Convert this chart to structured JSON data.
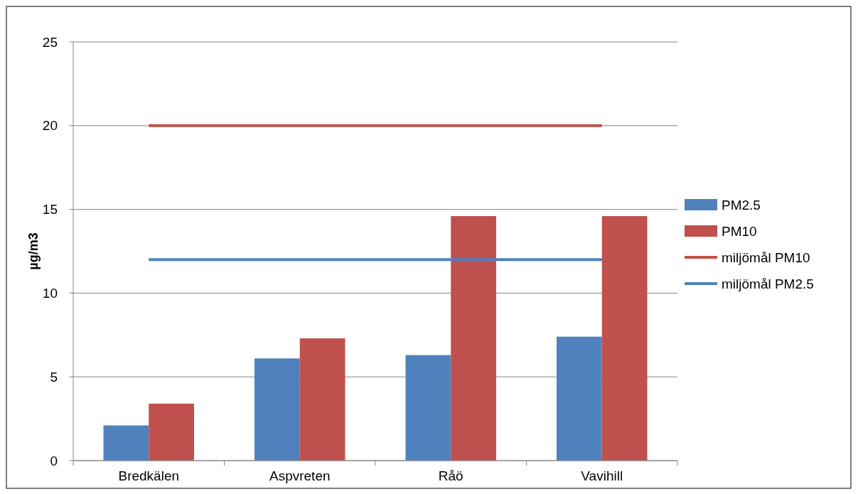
{
  "chart_data": {
    "type": "bar",
    "ylabel": "µg/m3",
    "categories": [
      "Bredkälen",
      "Aspvreten",
      "Råö",
      "Vavihill"
    ],
    "series": [
      {
        "name": "PM2.5",
        "color": "#4f81bd",
        "values": [
          2.1,
          6.1,
          6.3,
          7.4
        ]
      },
      {
        "name": "PM10",
        "color": "#c0504d",
        "values": [
          3.4,
          7.3,
          14.6,
          14.6
        ]
      },
      {
        "name": "miljömål PM10",
        "type": "line",
        "color": "#c0504d",
        "values": [
          20,
          20,
          20,
          20
        ]
      },
      {
        "name": "miljömål PM2.5",
        "type": "line",
        "color": "#4f81bd",
        "values": [
          12,
          12,
          12,
          12
        ]
      }
    ],
    "ylim": [
      0,
      25
    ],
    "yticks": [
      0,
      5,
      10,
      15,
      20,
      25
    ],
    "grid": "y",
    "legend": "right",
    "marker": "none"
  }
}
